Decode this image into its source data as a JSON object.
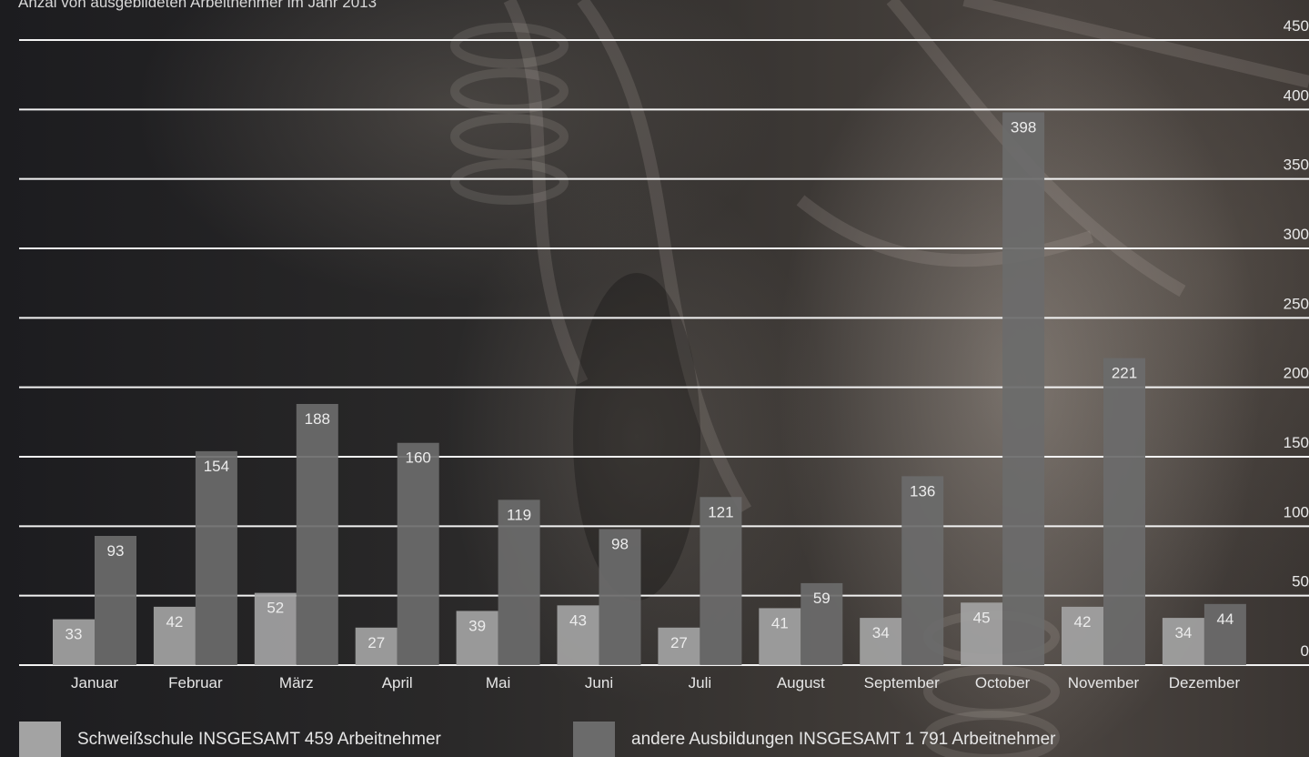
{
  "chart_data": {
    "type": "bar",
    "subtitle": "Anzal von ausgebildeten Arbeitnehmer im Jahr 2013",
    "categories": [
      "Januar",
      "Februar",
      "März",
      "April",
      "Mai",
      "Juni",
      "Juli",
      "August",
      "September",
      "October",
      "November",
      "Dezember"
    ],
    "series": [
      {
        "name": "Schweißschule INSGESAMT 459 Arbeitnehmer",
        "color": "#a3a3a3",
        "values": [
          33,
          42,
          52,
          27,
          39,
          43,
          27,
          41,
          34,
          45,
          42,
          34
        ]
      },
      {
        "name": "andere Ausbildungen INSGESAMT 1 791 Arbeitnehmer",
        "color": "#6b6b6b",
        "values": [
          93,
          154,
          188,
          160,
          119,
          98,
          121,
          59,
          136,
          398,
          221,
          44
        ]
      }
    ],
    "y_ticks": [
      "0",
      "50",
      "100",
      "150",
      "200",
      "250",
      "300",
      "350",
      "400",
      "450"
    ],
    "ylim": [
      0,
      450
    ],
    "grid": true
  }
}
